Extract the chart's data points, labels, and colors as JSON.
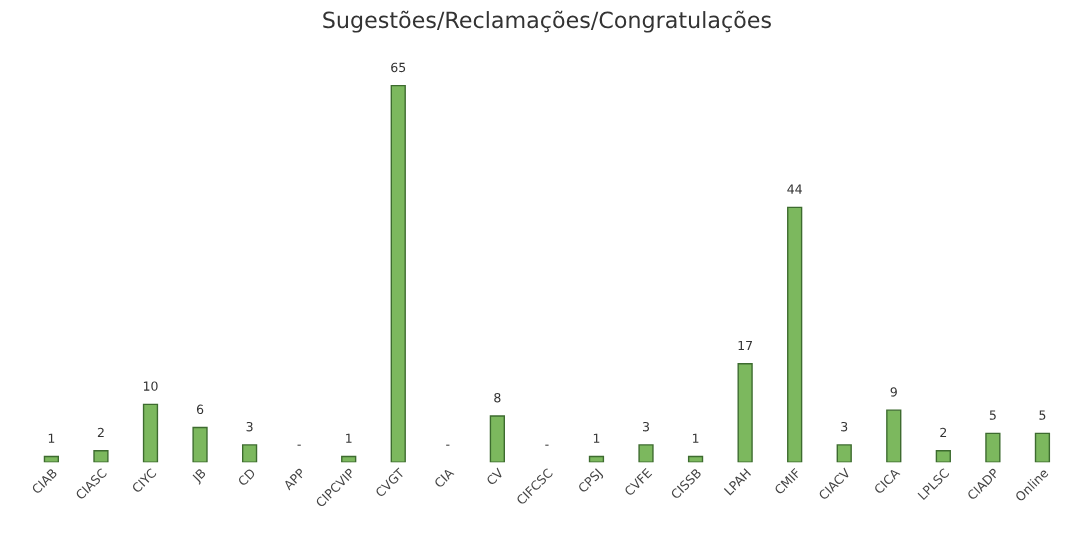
{
  "chart_data": {
    "type": "bar",
    "title": "Sugestões/Reclamações/Congratulações",
    "categories": [
      "CIAB",
      "CIASC",
      "CIYC",
      "JB",
      "CD",
      "APP",
      "CIPCVIP",
      "CVGT",
      "CIA",
      "CV",
      "CIFCSC",
      "CPSJ",
      "CVFE",
      "CISSB",
      "LPAH",
      "CMIF",
      "CIACV",
      "CICA",
      "LPLSC",
      "CIADP",
      "Online"
    ],
    "values": [
      1,
      2,
      10,
      6,
      3,
      0,
      1,
      65,
      0,
      8,
      0,
      1,
      3,
      1,
      17,
      44,
      3,
      9,
      2,
      5,
      5
    ],
    "value_labels": [
      "1",
      "2",
      "10",
      "6",
      "3",
      "-",
      "1",
      "65",
      "-",
      "8",
      "-",
      "1",
      "3",
      "1",
      "17",
      "44",
      "3",
      "9",
      "2",
      "5",
      "5"
    ],
    "color": "#7cb85e",
    "grid": false,
    "legend": false
  }
}
